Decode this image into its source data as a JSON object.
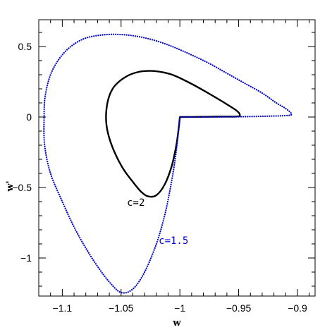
{
  "chart_data": {
    "type": "line",
    "title": "",
    "xlabel": "w",
    "ylabel": "w'",
    "xlim": [
      -1.12,
      -0.885
    ],
    "ylim": [
      -1.27,
      0.69
    ],
    "xticks": [
      -1.1,
      -1.05,
      -1,
      -0.95,
      -0.9
    ],
    "xtick_labels": [
      "−1.1",
      "−1.05",
      "−1",
      "−0.95",
      "−0.9"
    ],
    "yticks": [
      0.5,
      0,
      -0.5,
      -1
    ],
    "ytick_labels": [
      "0.5",
      "0",
      "−0.5",
      "−1"
    ],
    "grid": false,
    "legend": "none",
    "series": [
      {
        "name": "c=2",
        "color": "#000000",
        "style": "solid",
        "label_at": [
          -1.045,
          -0.63
        ],
        "points": [
          [
            -1.0,
            0.0
          ],
          [
            -0.99,
            0.0005
          ],
          [
            -0.98,
            0.0015
          ],
          [
            -0.97,
            0.0025
          ],
          [
            -0.96,
            0.003
          ],
          [
            -0.952,
            0.0035
          ],
          [
            -0.949,
            0.01
          ],
          [
            -0.951,
            0.04
          ],
          [
            -0.96,
            0.09
          ],
          [
            -0.975,
            0.165
          ],
          [
            -0.99,
            0.235
          ],
          [
            -1.005,
            0.295
          ],
          [
            -1.015,
            0.318
          ],
          [
            -1.025,
            0.327
          ],
          [
            -1.035,
            0.32
          ],
          [
            -1.045,
            0.29
          ],
          [
            -1.055,
            0.225
          ],
          [
            -1.06,
            0.15
          ],
          [
            -1.0625,
            0.05
          ],
          [
            -1.0625,
            -0.05
          ],
          [
            -1.06,
            -0.15
          ],
          [
            -1.055,
            -0.26
          ],
          [
            -1.048,
            -0.37
          ],
          [
            -1.04,
            -0.46
          ],
          [
            -1.033,
            -0.53
          ],
          [
            -1.027,
            -0.563
          ],
          [
            -1.02,
            -0.555
          ],
          [
            -1.013,
            -0.48
          ],
          [
            -1.007,
            -0.35
          ],
          [
            -1.003,
            -0.2
          ],
          [
            -1.001,
            -0.08
          ],
          [
            -1.0,
            0.0
          ]
        ]
      },
      {
        "name": "c=1.5",
        "color": "#0000cc",
        "style": "dotted",
        "label_at": [
          -1.018,
          -0.9
        ],
        "points": [
          [
            -1.0,
            0.0
          ],
          [
            -0.98,
            0.0005
          ],
          [
            -0.96,
            0.001
          ],
          [
            -0.94,
            0.003
          ],
          [
            -0.925,
            0.006
          ],
          [
            -0.91,
            0.01
          ],
          [
            -0.905,
            0.02
          ],
          [
            -0.91,
            0.06
          ],
          [
            -0.918,
            0.1
          ],
          [
            -0.93,
            0.17
          ],
          [
            -0.945,
            0.24
          ],
          [
            -0.96,
            0.31
          ],
          [
            -0.975,
            0.38
          ],
          [
            -0.99,
            0.44
          ],
          [
            -1.005,
            0.495
          ],
          [
            -1.02,
            0.54
          ],
          [
            -1.035,
            0.57
          ],
          [
            -1.05,
            0.585
          ],
          [
            -1.065,
            0.583
          ],
          [
            -1.08,
            0.56
          ],
          [
            -1.092,
            0.505
          ],
          [
            -1.102,
            0.42
          ],
          [
            -1.11,
            0.3
          ],
          [
            -1.1145,
            0.15
          ],
          [
            -1.1155,
            0.0
          ],
          [
            -1.115,
            -0.2
          ],
          [
            -1.11,
            -0.4
          ],
          [
            -1.1,
            -0.6
          ],
          [
            -1.09,
            -0.78
          ],
          [
            -1.08,
            -0.93
          ],
          [
            -1.07,
            -1.06
          ],
          [
            -1.06,
            -1.17
          ],
          [
            -1.05,
            -1.245
          ],
          [
            -1.04,
            -1.22
          ],
          [
            -1.03,
            -1.1
          ],
          [
            -1.02,
            -0.9
          ],
          [
            -1.013,
            -0.7
          ],
          [
            -1.008,
            -0.5
          ],
          [
            -1.004,
            -0.3
          ],
          [
            -1.0015,
            -0.12
          ],
          [
            -1.0,
            0.0
          ]
        ]
      }
    ]
  }
}
